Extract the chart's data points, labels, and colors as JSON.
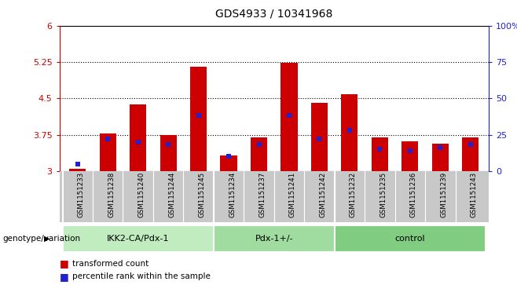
{
  "title": "GDS4933 / 10341968",
  "samples": [
    "GSM1151233",
    "GSM1151238",
    "GSM1151240",
    "GSM1151244",
    "GSM1151245",
    "GSM1151234",
    "GSM1151237",
    "GSM1151241",
    "GSM1151242",
    "GSM1151232",
    "GSM1151235",
    "GSM1151236",
    "GSM1151239",
    "GSM1151243"
  ],
  "transformed_counts": [
    3.04,
    3.77,
    4.38,
    3.75,
    5.15,
    3.32,
    3.69,
    5.24,
    4.41,
    4.58,
    3.69,
    3.62,
    3.57,
    3.69
  ],
  "percentile_ranks": [
    5,
    22,
    20,
    18,
    38,
    10,
    18,
    38,
    22,
    28,
    15,
    14,
    16,
    18
  ],
  "groups": [
    {
      "name": "IKK2-CA/Pdx-1",
      "start": 0,
      "end": 5
    },
    {
      "name": "Pdx-1+/-",
      "start": 5,
      "end": 9
    },
    {
      "name": "control",
      "start": 9,
      "end": 14
    }
  ],
  "ylim_left": [
    3,
    6
  ],
  "ylim_right": [
    0,
    100
  ],
  "yticks_left": [
    3,
    3.75,
    4.5,
    5.25,
    6
  ],
  "yticks_right": [
    0,
    25,
    50,
    75,
    100
  ],
  "ytick_labels_left": [
    "3",
    "3.75",
    "4.5",
    "5.25",
    "6"
  ],
  "ytick_labels_right": [
    "0",
    "25",
    "50",
    "75",
    "100%"
  ],
  "grid_lines": [
    3.75,
    4.5,
    5.25
  ],
  "bar_color": "#cc0000",
  "blue_color": "#2222cc",
  "label_bg_color": "#c8c8c8",
  "group_colors": [
    "#c0ecc0",
    "#a0dca0",
    "#80cc80"
  ],
  "group_label": "genotype/variation",
  "legend_red": "transformed count",
  "legend_blue": "percentile rank within the sample",
  "bar_width": 0.55,
  "ybase": 3.0
}
